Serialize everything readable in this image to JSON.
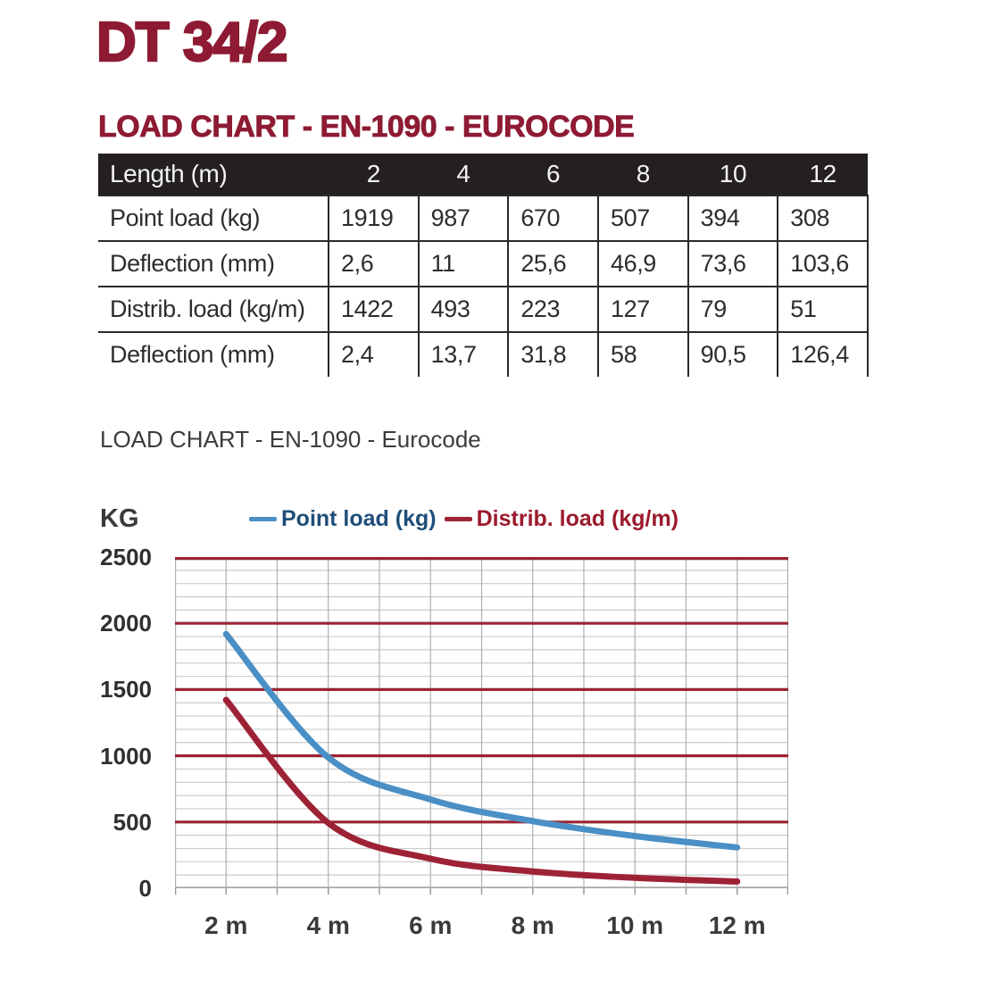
{
  "page": {
    "title": "DT 34/2",
    "heading": "LOAD CHART - EN-1090 - EUROCODE",
    "chart_caption": "LOAD CHART - EN-1090 - Eurocode"
  },
  "colors": {
    "maroon": "#8e1a33",
    "table_header_bg": "#242021",
    "table_header_text": "#f3f3f3",
    "blue_line": "#4a8fc5",
    "blue_legend_text": "#1f4e79",
    "red_line": "#9e2236",
    "red_legend_text": "#9b1b2e",
    "major_grid": "#9b2334",
    "minor_grid": "#cbcbcb",
    "vertical_grid": "#b0b0b0",
    "axis_line": "#a8a8a8"
  },
  "table": {
    "header": [
      "Length (m)",
      "2",
      "4",
      "6",
      "8",
      "10",
      "12"
    ],
    "rows": [
      {
        "label": "Point load (kg)",
        "values": [
          "1919",
          "987",
          "670",
          "507",
          "394",
          "308"
        ]
      },
      {
        "label": "Deflection (mm)",
        "values": [
          "2,6",
          "11",
          "25,6",
          "46,9",
          "73,6",
          "103,6"
        ]
      },
      {
        "label": "Distrib. load (kg/m)",
        "values": [
          "1422",
          "493",
          "223",
          "127",
          "79",
          "51"
        ]
      },
      {
        "label": "Deflection (mm)",
        "values": [
          "2,4",
          "13,7",
          "31,8",
          "58",
          "90,5",
          "126,4"
        ]
      }
    ]
  },
  "chart_data": {
    "type": "line",
    "title": "LOAD CHART - EN-1090 - Eurocode",
    "y_axis_label": "KG",
    "x": [
      2,
      4,
      6,
      8,
      10,
      12
    ],
    "x_tick_labels": [
      "2 m",
      "4 m",
      "6 m",
      "8 m",
      "10 m",
      "12 m"
    ],
    "series": [
      {
        "name": "Point load (kg)",
        "values": [
          1919,
          987,
          670,
          507,
          394,
          308
        ],
        "color": "#4a8fc5",
        "label_color": "#1f4e79"
      },
      {
        "name": "Distrib. load (kg/m)",
        "values": [
          1422,
          493,
          223,
          127,
          79,
          51
        ],
        "color": "#9e2236",
        "label_color": "#9b1b2e"
      }
    ],
    "xlim": [
      1,
      13
    ],
    "ylim": [
      0,
      2500
    ],
    "y_ticks": [
      0,
      500,
      1000,
      1500,
      2000,
      2500
    ],
    "y_major_step": 500,
    "y_minor_step": 100,
    "x_grid_step": 1,
    "grid": true,
    "legend_position": "top"
  }
}
